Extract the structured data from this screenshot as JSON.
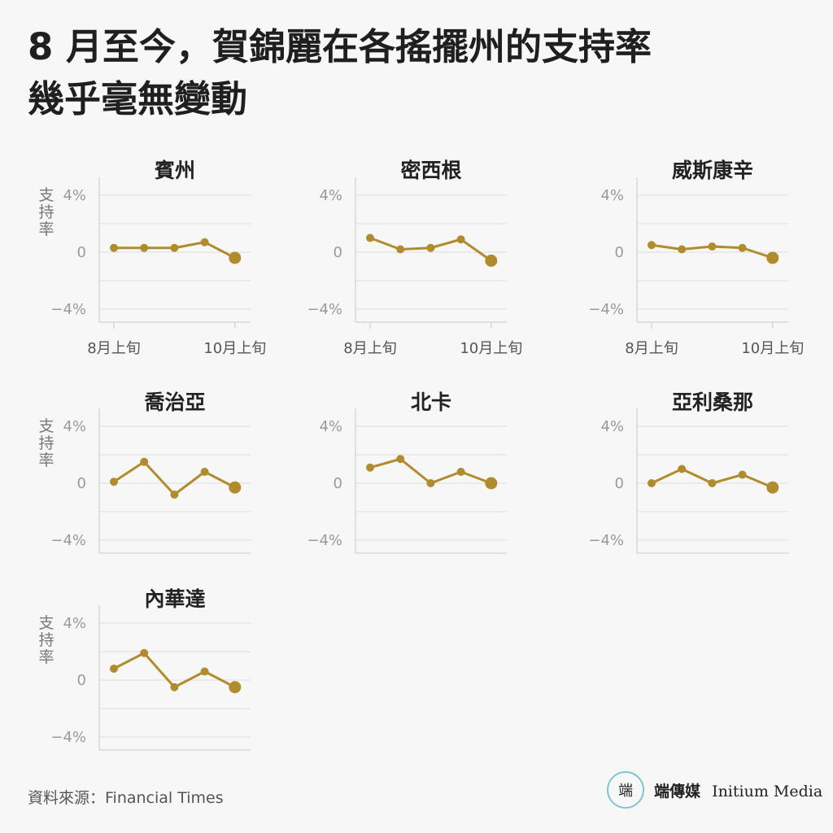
{
  "headline": "8 月至今，賀錦麗在各搖擺州的支持率\n幾乎毫無變動",
  "source": "資料來源：Financial Times",
  "brand": {
    "zh": "端傳媒",
    "en": "Initium Media",
    "logo_glyph": "端"
  },
  "colors": {
    "line": "#b08c2e",
    "grid": "#dcdcdc",
    "axis": "#c8c8c8"
  },
  "chart_data": [
    {
      "type": "line",
      "title": "賓州",
      "ylabel": "支持率",
      "yticks": [
        "4%",
        "0",
        "−4%"
      ],
      "ylim": [
        -5,
        5
      ],
      "xticks": [
        "8月上旬",
        "10月上旬"
      ],
      "values": [
        0.3,
        0.3,
        0.3,
        0.7,
        -0.4
      ]
    },
    {
      "type": "line",
      "title": "密西根",
      "ylabel": "",
      "yticks": [
        "4%",
        "0",
        "−4%"
      ],
      "ylim": [
        -5,
        5
      ],
      "xticks": [
        "8月上旬",
        "10月上旬"
      ],
      "values": [
        1.0,
        0.2,
        0.3,
        0.9,
        -0.6
      ]
    },
    {
      "type": "line",
      "title": "威斯康辛",
      "ylabel": "",
      "yticks": [
        "4%",
        "0",
        "−4%"
      ],
      "ylim": [
        -5,
        5
      ],
      "xticks": [
        "8月上旬",
        "10月上旬"
      ],
      "values": [
        0.5,
        0.2,
        0.4,
        0.3,
        -0.4
      ]
    },
    {
      "type": "line",
      "title": "喬治亞",
      "ylabel": "支持率",
      "yticks": [
        "4%",
        "0",
        "−4%"
      ],
      "ylim": [
        -5,
        5
      ],
      "xticks": [],
      "values": [
        0.1,
        1.5,
        -0.8,
        0.8,
        -0.3
      ]
    },
    {
      "type": "line",
      "title": "北卡",
      "ylabel": "",
      "yticks": [
        "4%",
        "0",
        "−4%"
      ],
      "ylim": [
        -5,
        5
      ],
      "xticks": [],
      "values": [
        1.1,
        1.7,
        0.0,
        0.8,
        0.0
      ]
    },
    {
      "type": "line",
      "title": "亞利桑那",
      "ylabel": "",
      "yticks": [
        "4%",
        "0",
        "−4%"
      ],
      "ylim": [
        -5,
        5
      ],
      "xticks": [],
      "values": [
        0.0,
        1.0,
        0.0,
        0.6,
        -0.3
      ]
    },
    {
      "type": "line",
      "title": "內華達",
      "ylabel": "支持率",
      "yticks": [
        "4%",
        "0",
        "−4%"
      ],
      "ylim": [
        -5,
        5
      ],
      "xticks": [],
      "values": [
        0.8,
        1.9,
        -0.5,
        0.6,
        -0.5
      ]
    }
  ]
}
